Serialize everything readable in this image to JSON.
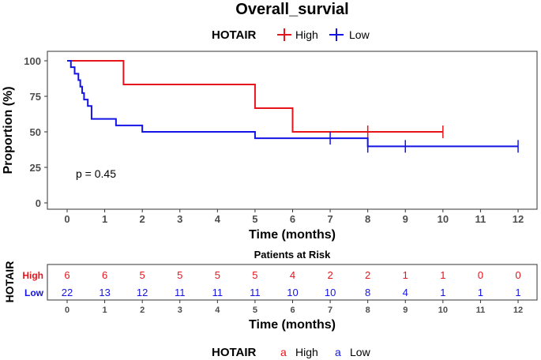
{
  "chart_data": {
    "type": "line",
    "subtype": "kaplan-meier",
    "title": "Overall_survial",
    "legend": {
      "title": "HOTAIR",
      "placement": "top",
      "entries": [
        "High",
        "Low"
      ]
    },
    "xlabel": "Time (months)",
    "ylabel": "Proportion (%)",
    "xlim": [
      0,
      12
    ],
    "ylim": [
      0,
      100
    ],
    "xticks": [
      "0",
      "1",
      "2",
      "3",
      "4",
      "5",
      "6",
      "7",
      "8",
      "9",
      "10",
      "11",
      "12"
    ],
    "yticks": [
      "0",
      "25",
      "50",
      "75",
      "100"
    ],
    "grid": false,
    "annotation": "p = 0.45",
    "colors": {
      "High": "#e8141c",
      "Low": "#1414e6"
    },
    "series": [
      {
        "name": "High",
        "steps": [
          [
            0,
            100
          ],
          [
            1.5,
            83.3
          ],
          [
            5,
            66.7
          ],
          [
            6,
            50
          ]
        ],
        "end_x": 10,
        "censor": [
          [
            8,
            50
          ],
          [
            10,
            50
          ]
        ]
      },
      {
        "name": "Low",
        "steps": [
          [
            0,
            100
          ],
          [
            0.1,
            95.5
          ],
          [
            0.2,
            90.9
          ],
          [
            0.3,
            86.4
          ],
          [
            0.35,
            81.8
          ],
          [
            0.4,
            77.3
          ],
          [
            0.45,
            72.7
          ],
          [
            0.55,
            68.2
          ],
          [
            0.65,
            59.1
          ],
          [
            1.3,
            54.5
          ],
          [
            2,
            50
          ],
          [
            5,
            45.5
          ],
          [
            8,
            39.8
          ]
        ],
        "end_x": 12,
        "censor": [
          [
            7,
            45.5
          ],
          [
            8,
            39.8
          ],
          [
            9,
            39.8
          ],
          [
            12,
            39.8
          ]
        ]
      }
    ],
    "risk_table": {
      "title": "Patients at Risk",
      "ylabel": "HOTAIR",
      "xlabel": "Time (months)",
      "times": [
        "0",
        "1",
        "2",
        "3",
        "4",
        "5",
        "6",
        "7",
        "8",
        "9",
        "10",
        "11",
        "12"
      ],
      "rows": [
        {
          "name": "High",
          "counts": [
            "6",
            "6",
            "5",
            "5",
            "5",
            "5",
            "4",
            "2",
            "2",
            "1",
            "1",
            "0",
            "0"
          ]
        },
        {
          "name": "Low",
          "counts": [
            "22",
            "13",
            "12",
            "11",
            "11",
            "11",
            "10",
            "10",
            "8",
            "4",
            "1",
            "1",
            "1"
          ]
        }
      ]
    },
    "bottom_legend": {
      "title": "HOTAIR",
      "glyph": "a",
      "entries": [
        "High",
        "Low"
      ]
    }
  }
}
